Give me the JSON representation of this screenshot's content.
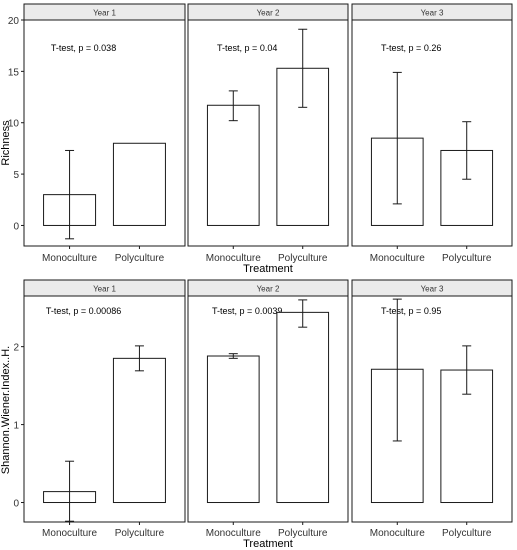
{
  "chart_data": [
    {
      "type": "bar",
      "title": "",
      "xlabel": "Treatment",
      "ylabel": "Richness",
      "ylim": [
        -2,
        20
      ],
      "yticks": [
        0,
        5,
        10,
        15,
        20
      ],
      "grid": false,
      "categories": [
        "Monoculture",
        "Polyculture"
      ],
      "panels": [
        {
          "strip": "Year 1",
          "annotation": "T-test, p = 0.038",
          "values": [
            3.0,
            8.0
          ],
          "err_low": [
            -1.3,
            8.0
          ],
          "err_high": [
            7.3,
            8.0
          ]
        },
        {
          "strip": "Year 2",
          "annotation": "T-test, p = 0.04",
          "values": [
            11.7,
            15.3
          ],
          "err_low": [
            10.2,
            11.5
          ],
          "err_high": [
            13.1,
            19.1
          ]
        },
        {
          "strip": "Year 3",
          "annotation": "T-test, p = 0.26",
          "values": [
            8.5,
            7.3
          ],
          "err_low": [
            2.1,
            4.5
          ],
          "err_high": [
            14.9,
            10.1
          ]
        }
      ]
    },
    {
      "type": "bar",
      "title": "",
      "xlabel": "Treatment",
      "ylabel": "Shannon.Wiener.Index..H.",
      "ylim": [
        -0.25,
        2.65
      ],
      "yticks": [
        0,
        1,
        2
      ],
      "grid": false,
      "categories": [
        "Monoculture",
        "Polyculture"
      ],
      "panels": [
        {
          "strip": "Year 1",
          "annotation": "T-test, p = 0.00086",
          "values": [
            0.14,
            1.85
          ],
          "err_low": [
            -0.24,
            1.69
          ],
          "err_high": [
            0.53,
            2.01
          ]
        },
        {
          "strip": "Year 2",
          "annotation": "T-test, p = 0.0039",
          "values": [
            1.88,
            2.44
          ],
          "err_low": [
            1.85,
            2.25
          ],
          "err_high": [
            1.91,
            2.6
          ]
        },
        {
          "strip": "Year 3",
          "annotation": "T-test, p = 0.95",
          "values": [
            1.71,
            1.7
          ],
          "err_low": [
            0.79,
            1.39
          ],
          "err_high": [
            2.61,
            2.01
          ]
        }
      ]
    }
  ],
  "colors": {
    "strip_fill": "#ebebeb",
    "bar_fill": "#ffffff",
    "line": "#1a1a1a",
    "text": "#000000",
    "tick_text": "#333333"
  }
}
